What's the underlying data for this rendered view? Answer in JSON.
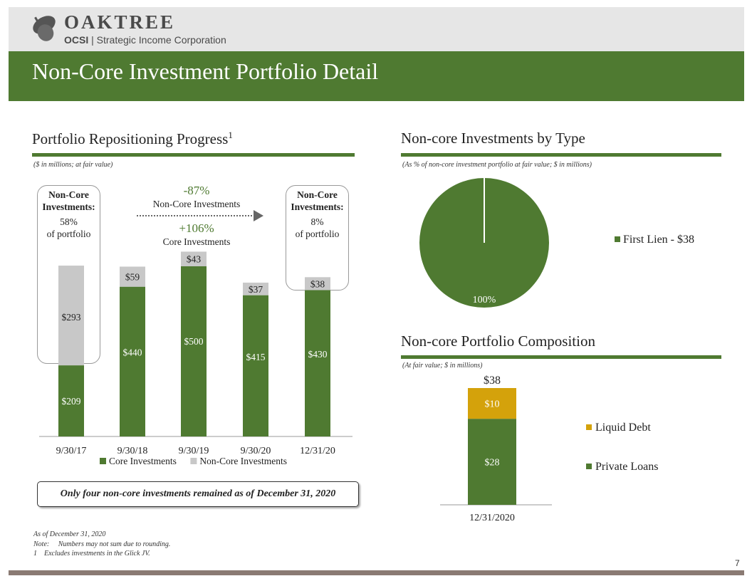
{
  "header": {
    "logo_word": "OAKTREE",
    "logo_ticker": "OCSI",
    "logo_company": "Strategic Income Corporation",
    "title": "Non-Core Investment Portfolio Detail"
  },
  "left": {
    "section_title": "Portfolio Repositioning Progress",
    "section_title_sup": "1",
    "note": "($ in millions; at fair value)",
    "bubble_left": {
      "heading": "Non-Core Investments:",
      "value": "58%",
      "text": "of portfolio"
    },
    "bubble_right": {
      "heading": "Non-Core Investments:",
      "value": "8%",
      "text": "of portfolio"
    },
    "change_noncore_value": "-87%",
    "change_noncore_label": "Non-Core Investments",
    "change_core_value": "+106%",
    "change_core_label": "Core Investments",
    "bottom_callout": "Only four non-core investments remained as of December 31, 2020"
  },
  "right": {
    "type_title": "Non-core Investments by Type",
    "type_note": "(As % of non-core investment portfolio at fair value; $ in millions)",
    "composition_title": "Non-core Portfolio Composition",
    "composition_note": "(At fair value; $ in millions)"
  },
  "chart_data": [
    {
      "type": "bar",
      "stacked": true,
      "categories": [
        "9/30/17",
        "9/30/18",
        "9/30/19",
        "9/30/20",
        "12/31/20"
      ],
      "series": [
        {
          "name": "Core Investments",
          "values": [
            209,
            440,
            500,
            415,
            430
          ],
          "labels": [
            "$209",
            "$440",
            "$500",
            "$415",
            "$430"
          ],
          "color": "#4f7a31"
        },
        {
          "name": "Non-Core Investments",
          "values": [
            293,
            59,
            43,
            37,
            38
          ],
          "labels": [
            "$293",
            "$59",
            "$43",
            "$37",
            "$38"
          ],
          "color": "#c8c8c8"
        }
      ],
      "ylim": [
        0,
        600
      ],
      "legend": "bottom"
    },
    {
      "type": "pie",
      "slices": [
        {
          "name": "First Lien - $38",
          "value": 100,
          "label": "100%",
          "color": "#4f7a31"
        }
      ],
      "legend": "right"
    },
    {
      "type": "bar",
      "stacked": true,
      "categories": [
        "12/31/2020"
      ],
      "series": [
        {
          "name": "Private Loans",
          "values": [
            28
          ],
          "labels": [
            "$28"
          ],
          "color": "#4f7a31"
        },
        {
          "name": "Liquid Debt",
          "values": [
            10
          ],
          "labels": [
            "$10"
          ],
          "color": "#d4a20b"
        }
      ],
      "total_label": "$38",
      "legend": "right"
    }
  ],
  "footnotes": {
    "asof": "As of December 31, 2020",
    "note": "Note:     Numbers may not sum due to rounding.",
    "fn1": "1    Excludes investments in the Glick JV."
  },
  "page_number": "7"
}
